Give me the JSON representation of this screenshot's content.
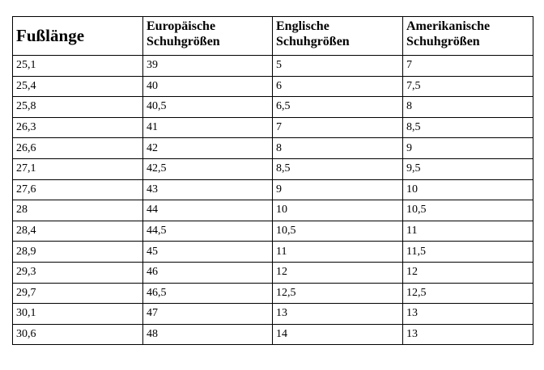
{
  "table": {
    "header": [
      "Fußlänge",
      "Europäische Schuhgrößen",
      "Englische Schuhgrößen",
      "Amerikanische Schuhgrößen"
    ],
    "rows": [
      [
        "25,1",
        "39",
        "5",
        "7"
      ],
      [
        "25,4",
        "40",
        "6",
        "7,5"
      ],
      [
        "25,8",
        "40,5",
        "6,5",
        "8"
      ],
      [
        "26,3",
        "41",
        "7",
        "8,5"
      ],
      [
        "26,6",
        "42",
        "8",
        "9"
      ],
      [
        "27,1",
        "42,5",
        "8,5",
        "9,5"
      ],
      [
        "27,6",
        "43",
        "9",
        "10"
      ],
      [
        "28",
        "44",
        "10",
        "10,5"
      ],
      [
        "28,4",
        "44,5",
        "10,5",
        "11"
      ],
      [
        "28,9",
        "45",
        "11",
        "11,5"
      ],
      [
        "29,3",
        "46",
        "12",
        "12"
      ],
      [
        "29,7",
        "46,5",
        "12,5",
        "12,5"
      ],
      [
        "30,1",
        "47",
        "13",
        "13"
      ],
      [
        "30,6",
        "48",
        "14",
        "13"
      ]
    ]
  }
}
